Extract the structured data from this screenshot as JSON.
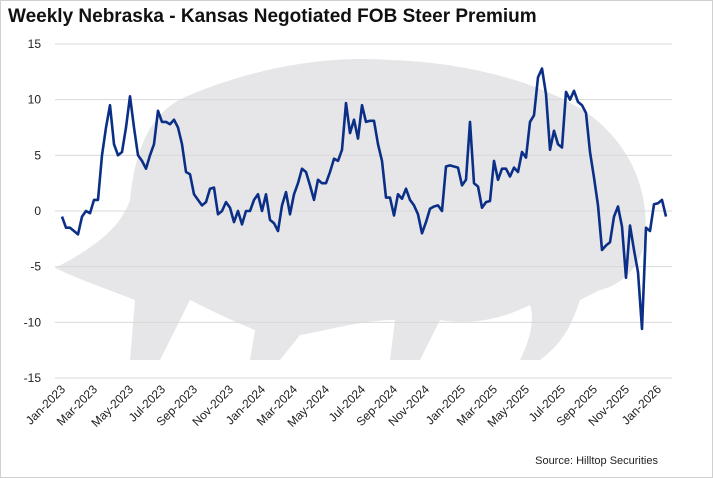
{
  "chart_data": {
    "type": "line",
    "title": "Weekly Nebraska - Kansas Negotiated FOB Steer Premium",
    "source": "Source: Hilltop Securities",
    "color": "#0b2f86",
    "grid": true,
    "ylim": [
      -15,
      15
    ],
    "yticks": [
      -15,
      -10,
      -5,
      0,
      5,
      10,
      15
    ],
    "categories": [
      "Jan-2023",
      null,
      null,
      null,
      null,
      null,
      null,
      null,
      "Mar-2023",
      null,
      null,
      null,
      null,
      null,
      null,
      null,
      null,
      "May-2023",
      null,
      null,
      null,
      null,
      null,
      null,
      null,
      "Jul-2023",
      null,
      null,
      null,
      null,
      null,
      null,
      null,
      "Sep-2023",
      null,
      null,
      null,
      null,
      null,
      null,
      null,
      null,
      "Nov-2023",
      null,
      null,
      null,
      null,
      null,
      null,
      null,
      "Jan-2024",
      null,
      null,
      null,
      null,
      null,
      null,
      null,
      "Mar-2024",
      null,
      null,
      null,
      null,
      null,
      null,
      null,
      "May-2024",
      null,
      null,
      null,
      null,
      null,
      null,
      null,
      null,
      "Jul-2024",
      null,
      null,
      null,
      null,
      null,
      null,
      null,
      "Sep-2024",
      null,
      null,
      null,
      null,
      null,
      null,
      null,
      "Nov-2024",
      null,
      null,
      null,
      null,
      null,
      null,
      null,
      null,
      "Jan-2025",
      null,
      null,
      null,
      null,
      null,
      null,
      null,
      "Mar-2025",
      null,
      null,
      null,
      null,
      null,
      null,
      null,
      "May-2025",
      null,
      null,
      null,
      null,
      null,
      null,
      null,
      null,
      "Jul-2025",
      null,
      null,
      null,
      null,
      null,
      null,
      null,
      "Sep-2025",
      null,
      null,
      null,
      null,
      null,
      null,
      null,
      "Nov-2025",
      null,
      null,
      null,
      null,
      null,
      null,
      null,
      "Jan-2026",
      null,
      null
    ],
    "values": [
      -0.5,
      -1.5,
      -1.5,
      -1.8,
      -2.1,
      -0.5,
      0,
      -0.2,
      1,
      1,
      5,
      7.5,
      9.5,
      6,
      5,
      5.3,
      7.5,
      10.3,
      7.5,
      5,
      4.5,
      3.8,
      5,
      6,
      9,
      8,
      8,
      7.8,
      8.2,
      7.5,
      6,
      3.5,
      3.3,
      1.5,
      1,
      0.5,
      0.8,
      2,
      2.1,
      -0.3,
      0,
      0.8,
      0.3,
      -1,
      0,
      -1.2,
      0,
      0,
      1,
      1.5,
      0,
      1.5,
      -0.8,
      -1.1,
      -1.8,
      0.5,
      1.7,
      -0.3,
      1.5,
      2.5,
      3.8,
      3.5,
      2.3,
      1,
      2.8,
      2.5,
      2.5,
      3.5,
      4.7,
      4.5,
      5.5,
      9.7,
      7,
      8.2,
      6.5,
      9.5,
      8,
      8.1,
      8.1,
      6,
      4.5,
      1.2,
      1.2,
      -0.4,
      1.5,
      1.1,
      2,
      1,
      0.5,
      -0.3,
      -2,
      -1,
      0.2,
      0.4,
      0.5,
      0,
      4,
      4.1,
      4,
      3.9,
      2.3,
      2.8,
      8,
      2.5,
      2.2,
      0.3,
      0.8,
      0.9,
      4.5,
      2.8,
      3.8,
      3.8,
      3.1,
      3.9,
      3.5,
      5.3,
      4.8,
      8,
      8.6,
      12,
      12.8,
      10.5,
      5.5,
      7.2,
      6,
      5.7,
      10.7,
      10,
      10.8,
      9.8,
      9.5,
      8.8,
      5.3,
      3,
      0.5,
      -3.5,
      -3.1,
      -2.8,
      -0.5,
      0.4,
      -1.4,
      -6,
      -1.3,
      -3.5,
      -5.5,
      -10.6,
      -1.5,
      -1.8,
      0.6,
      0.7,
      1,
      -0.5
    ]
  }
}
